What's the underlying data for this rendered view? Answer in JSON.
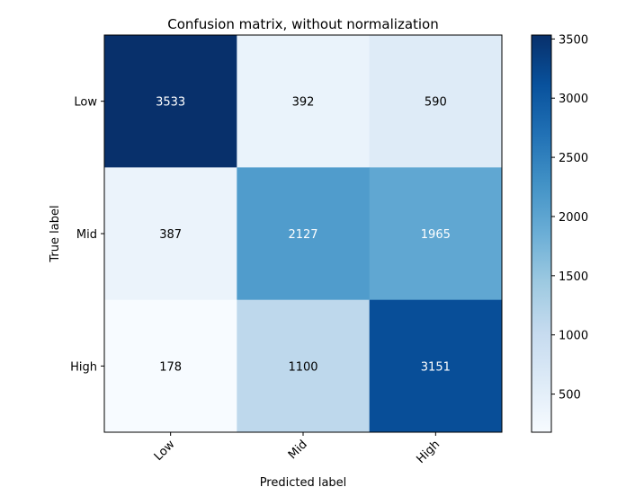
{
  "chart_data": {
    "type": "heatmap",
    "title": "Confusion matrix, without normalization",
    "xlabel": "Predicted label",
    "ylabel": "True label",
    "x_categories": [
      "Low",
      "Mid",
      "High"
    ],
    "y_categories": [
      "Low",
      "Mid",
      "High"
    ],
    "values": [
      [
        3533,
        392,
        590
      ],
      [
        387,
        2127,
        1965
      ],
      [
        178,
        1100,
        3151
      ]
    ],
    "colormap": "Blues",
    "colorbar": {
      "range": [
        178,
        3533
      ],
      "ticks": [
        500,
        1000,
        1500,
        2000,
        2500,
        3000,
        3500
      ]
    },
    "grid": false,
    "text_color_dark": "#000000",
    "text_color_light": "#ffffff"
  }
}
